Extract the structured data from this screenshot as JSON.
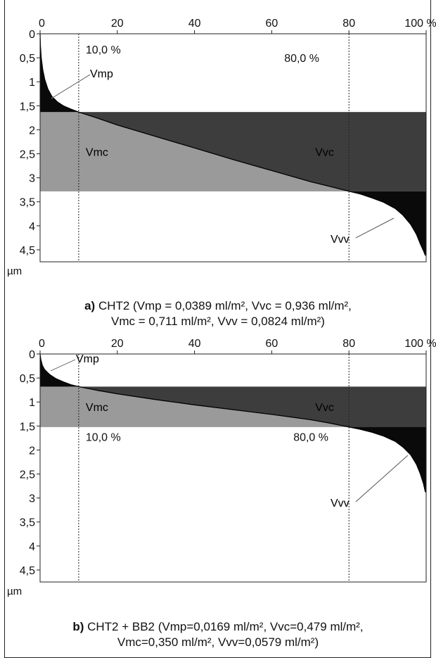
{
  "chart_data": [
    {
      "type": "area",
      "x_unit": "%",
      "y_unit": "µm",
      "x_ticks": [
        "0",
        "20",
        "40",
        "60",
        "80",
        "100 %"
      ],
      "y_ticks": [
        "0",
        "0,5",
        "1",
        "1,5",
        "2",
        "2,5",
        "3",
        "3,5",
        "4",
        "4,5"
      ],
      "xlim": [
        0,
        100
      ],
      "ylim": [
        0,
        4.75
      ],
      "y_inverted": true,
      "thresholds": {
        "mr1_pct": 10,
        "mr2_pct": 80,
        "mr1_label": "10,0 %",
        "mr2_label": "80,0 %",
        "core_top_um": 1.63,
        "core_bottom_um": 3.28
      },
      "curve": {
        "x": [
          0,
          0.1,
          0.3,
          0.7,
          1.2,
          2,
          3,
          4.5,
          6,
          8,
          10,
          15,
          20,
          30,
          40,
          50,
          60,
          70,
          75,
          78,
          80,
          83,
          86,
          89,
          92,
          94,
          96,
          97.5,
          98.5,
          99.3,
          99.8
        ],
        "y": [
          0,
          0.25,
          0.5,
          0.75,
          0.95,
          1.15,
          1.3,
          1.42,
          1.5,
          1.57,
          1.63,
          1.76,
          1.9,
          2.14,
          2.38,
          2.62,
          2.85,
          3.08,
          3.18,
          3.24,
          3.28,
          3.34,
          3.42,
          3.51,
          3.64,
          3.78,
          3.97,
          4.18,
          4.38,
          4.52,
          4.62
        ]
      },
      "regions": {
        "vmp": "Vmp",
        "vmc": "Vmc",
        "vvc": "Vvc",
        "vvv": "Vvv"
      },
      "caption": {
        "prefix": "a)",
        "line1": " CHT2 (Vmp = 0,0389 ml/m², Vvc = 0,936 ml/m²,",
        "line2": "Vmc = 0,711 ml/m², Vvv = 0,0824 ml/m²)"
      },
      "colors": {
        "peak": "#0a0a0a",
        "material_core": "#9a9a9a",
        "void_core": "#3d3d3d",
        "valley": "#0a0a0a"
      }
    },
    {
      "type": "area",
      "x_unit": "%",
      "y_unit": "µm",
      "x_ticks": [
        "0",
        "20",
        "40",
        "60",
        "80",
        "100 %"
      ],
      "y_ticks": [
        "0",
        "0,5",
        "1",
        "1,5",
        "2",
        "2,5",
        "3",
        "3,5",
        "4",
        "4,5"
      ],
      "xlim": [
        0,
        100
      ],
      "ylim": [
        0,
        4.75
      ],
      "y_inverted": true,
      "thresholds": {
        "mr1_pct": 10,
        "mr2_pct": 80,
        "mr1_label": "10,0 %",
        "mr2_label": "80,0 %",
        "core_top_um": 0.68,
        "core_bottom_um": 1.52
      },
      "curve": {
        "x": [
          0,
          0.2,
          0.6,
          1.2,
          2.5,
          4,
          6,
          8,
          10,
          15,
          20,
          30,
          40,
          50,
          60,
          70,
          75,
          80,
          83,
          86,
          89,
          92,
          94,
          96,
          97.5,
          98.5,
          99.3,
          99.8
        ],
        "y": [
          0,
          0.12,
          0.24,
          0.33,
          0.43,
          0.51,
          0.58,
          0.64,
          0.68,
          0.76,
          0.83,
          0.95,
          1.06,
          1.16,
          1.26,
          1.37,
          1.44,
          1.52,
          1.57,
          1.63,
          1.71,
          1.82,
          1.94,
          2.1,
          2.3,
          2.5,
          2.7,
          2.88
        ]
      },
      "regions": {
        "vmp": "Vmp",
        "vmc": "Vmc",
        "vvc": "Vvc",
        "vvv": "Vvv"
      },
      "caption": {
        "prefix": "b)",
        "line1": " CHT2 + BB2 (Vmp=0,0169 ml/m², Vvc=0,479 ml/m²,",
        "line2": "Vmc=0,350 ml/m², Vvv=0,0579 ml/m²)"
      },
      "colors": {
        "peak": "#0a0a0a",
        "material_core": "#9a9a9a",
        "void_core": "#3d3d3d",
        "valley": "#0a0a0a"
      }
    }
  ]
}
